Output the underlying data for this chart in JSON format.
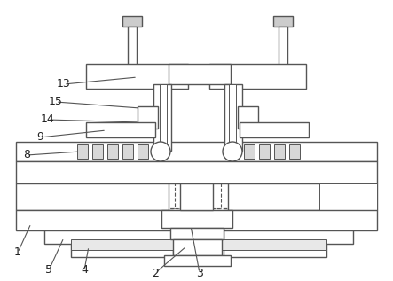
{
  "fig_width": 4.43,
  "fig_height": 3.17,
  "dpi": 100,
  "bg_color": "#ffffff",
  "lc": "#555555",
  "lw": 1.0,
  "tlw": 0.7
}
